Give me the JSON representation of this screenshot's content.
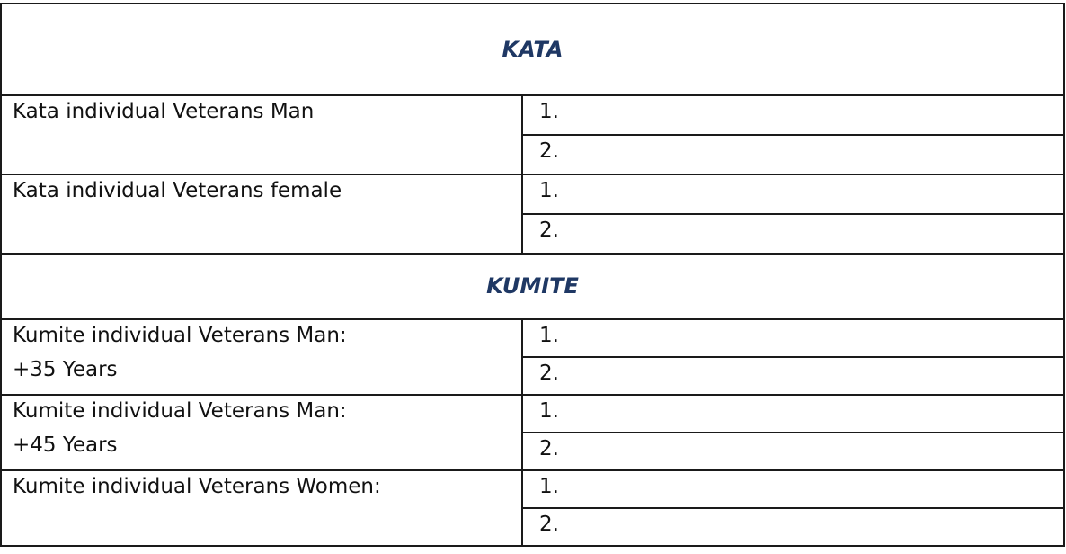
{
  "sections": [
    {
      "title": "KATA",
      "categories": [
        {
          "label": "Kata individual Veterans Man",
          "label_line2": "",
          "places": [
            "1.",
            "2."
          ]
        },
        {
          "label": "Kata individual Veterans female",
          "label_line2": "",
          "places": [
            "1.",
            "2."
          ]
        }
      ]
    },
    {
      "title": "KUMITE",
      "categories": [
        {
          "label": "Kumite individual Veterans Man:",
          "label_line2": "+35 Years",
          "places": [
            "1.",
            "2."
          ]
        },
        {
          "label": "Kumite individual Veterans Man:",
          "label_line2": "+45 Years",
          "places": [
            "1.",
            "2."
          ]
        },
        {
          "label": "Kumite individual Veterans Women:",
          "label_line2": "",
          "places": [
            "1.",
            "2."
          ]
        }
      ]
    }
  ]
}
